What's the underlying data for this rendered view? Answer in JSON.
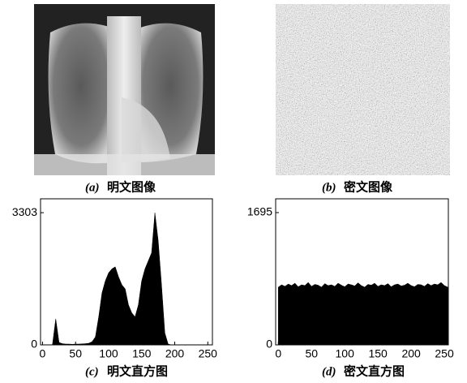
{
  "images": [
    {
      "label": "(a)",
      "caption": "明文图像"
    },
    {
      "label": "(b)",
      "caption": "密文图像"
    }
  ],
  "chart_data": [
    {
      "type": "area",
      "label": "(c)",
      "title": "明文直方图",
      "color": "#000000",
      "x": [
        0,
        5,
        10,
        15,
        20,
        25,
        30,
        35,
        40,
        45,
        50,
        55,
        60,
        65,
        70,
        75,
        80,
        85,
        90,
        95,
        100,
        105,
        110,
        115,
        120,
        125,
        130,
        135,
        140,
        145,
        150,
        155,
        160,
        165,
        170,
        175,
        180,
        185,
        190,
        195,
        200,
        205,
        210,
        215,
        220,
        225,
        230,
        235,
        240,
        245,
        250,
        255
      ],
      "values": [
        0,
        0,
        0,
        0,
        650,
        60,
        30,
        20,
        20,
        15,
        20,
        20,
        25,
        30,
        40,
        80,
        200,
        700,
        1300,
        1600,
        1800,
        1900,
        1950,
        1700,
        1500,
        1400,
        1000,
        800,
        700,
        1000,
        1600,
        1900,
        2100,
        2300,
        3300,
        2600,
        1500,
        300,
        20,
        0,
        0,
        0,
        0,
        0,
        0,
        0,
        0,
        0,
        0,
        0,
        0,
        0
      ],
      "xlim": [
        -3,
        257
      ],
      "xticks": [
        0,
        50,
        100,
        150,
        200,
        250
      ],
      "ylim": [
        0,
        3650
      ],
      "yticks": [
        0,
        3303
      ]
    },
    {
      "type": "area",
      "label": "(d)",
      "title": "密文直方图",
      "color": "#000000",
      "x": [
        0,
        5,
        10,
        15,
        20,
        25,
        30,
        35,
        40,
        45,
        50,
        55,
        60,
        65,
        70,
        75,
        80,
        85,
        90,
        95,
        100,
        105,
        110,
        115,
        120,
        125,
        130,
        135,
        140,
        145,
        150,
        155,
        160,
        165,
        170,
        175,
        180,
        185,
        190,
        195,
        200,
        205,
        210,
        215,
        220,
        225,
        230,
        235,
        240,
        245,
        250,
        255
      ],
      "values": [
        740,
        770,
        750,
        780,
        760,
        790,
        745,
        770,
        760,
        800,
        750,
        775,
        765,
        740,
        785,
        760,
        770,
        750,
        790,
        765,
        745,
        780,
        770,
        755,
        795,
        760,
        740,
        775,
        765,
        790,
        750,
        770,
        760,
        785,
        745,
        770,
        780,
        755,
        765,
        790,
        760,
        745,
        775,
        770,
        750,
        785,
        760,
        780,
        770,
        800,
        760,
        740
      ],
      "xlim": [
        -4,
        256
      ],
      "xticks": [
        0,
        50,
        100,
        150,
        200,
        250
      ],
      "ylim": [
        0,
        1872
      ],
      "yticks": [
        0,
        1695
      ]
    }
  ]
}
